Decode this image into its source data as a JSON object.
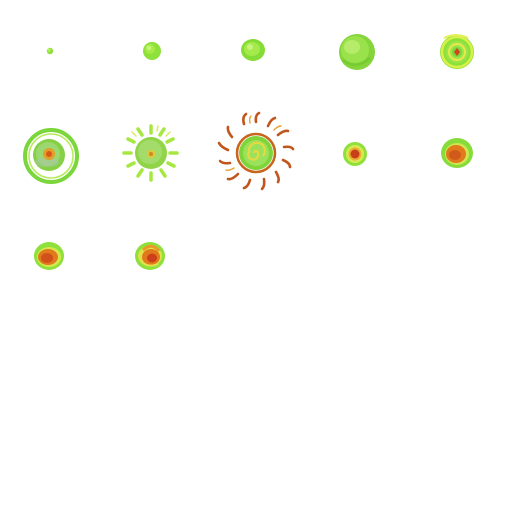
{
  "sheet": {
    "palette": {
      "lime": "#8ee03a",
      "lime_light": "#b8f05a",
      "green_dark": "#5cc52a",
      "yellow": "#e8e84a",
      "orange": "#e07a1a",
      "red_orange": "#d0451a",
      "brown": "#b8501c"
    },
    "sprites": [
      {
        "name": "lime-dot-tiny-icon",
        "row": 0,
        "col": 0
      },
      {
        "name": "lime-dot-small-icon",
        "row": 0,
        "col": 1
      },
      {
        "name": "lime-dot-medium-icon",
        "row": 0,
        "col": 2
      },
      {
        "name": "lime-orb-large-icon",
        "row": 0,
        "col": 3
      },
      {
        "name": "lime-orb-ringed-core-icon",
        "row": 0,
        "col": 4
      },
      {
        "name": "lime-orb-double-ring-icon",
        "row": 1,
        "col": 0
      },
      {
        "name": "lime-sun-rays-icon",
        "row": 1,
        "col": 1
      },
      {
        "name": "orange-sun-swirl-icon",
        "row": 1,
        "col": 2
      },
      {
        "name": "orb-red-core-small-icon",
        "row": 1,
        "col": 3
      },
      {
        "name": "orb-orange-core-icon",
        "row": 1,
        "col": 4
      },
      {
        "name": "orb-orange-core-left-icon",
        "row": 2,
        "col": 0
      },
      {
        "name": "orb-swirl-core-icon",
        "row": 2,
        "col": 1
      }
    ]
  }
}
